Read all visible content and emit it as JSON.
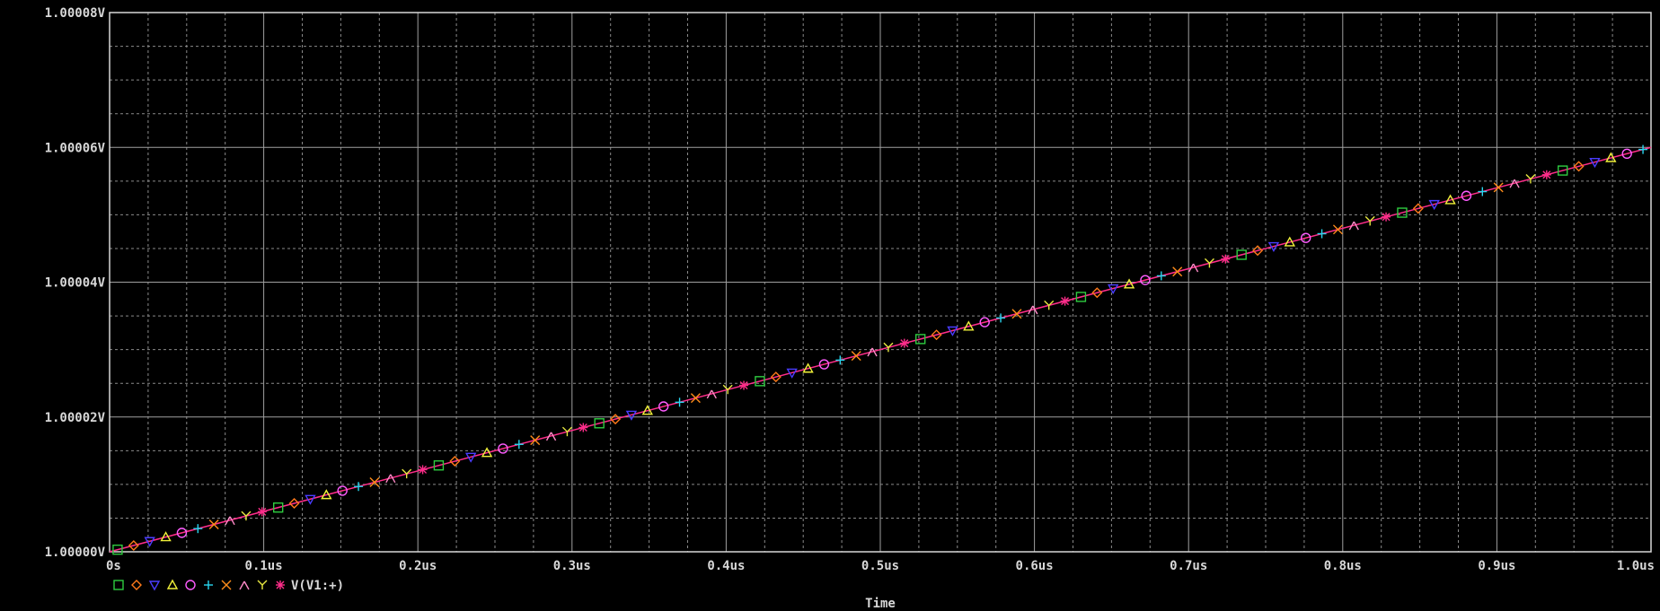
{
  "colors": {
    "background": "#000000",
    "frame": "#d8d8d8",
    "grid_major": "#a0a0a0",
    "grid_minor": "#8a8a8a",
    "text": "#d8d8d8",
    "trace": "#ff2d8a"
  },
  "legend": {
    "label": "V(V1:+)",
    "markers": [
      {
        "shape": "square",
        "color": "#2ecc40"
      },
      {
        "shape": "diamond",
        "color": "#ff7a1a"
      },
      {
        "shape": "triangle-down",
        "color": "#4a3cff"
      },
      {
        "shape": "triangle-up",
        "color": "#f2f23a"
      },
      {
        "shape": "circle",
        "color": "#ff5cff"
      },
      {
        "shape": "plus",
        "color": "#29d6f0"
      },
      {
        "shape": "x",
        "color": "#ff8c1a"
      },
      {
        "shape": "lambda",
        "color": "#ff8ac8"
      },
      {
        "shape": "y",
        "color": "#e8e840"
      },
      {
        "shape": "asterisk",
        "color": "#ff2d8a"
      }
    ]
  },
  "chart_data": {
    "type": "line",
    "xlabel": "Time",
    "ylabel": "",
    "x_unit": "us",
    "xlim": [
      0,
      1.0
    ],
    "ylim": [
      1.0,
      1.00008
    ],
    "x_ticks": [
      0,
      0.1,
      0.2,
      0.3,
      0.4,
      0.5,
      0.6,
      0.7,
      0.8,
      0.9,
      1.0
    ],
    "x_tick_labels": [
      "0s",
      "0.1us",
      "0.2us",
      "0.3us",
      "0.4us",
      "0.5us",
      "0.6us",
      "0.7us",
      "0.8us",
      "0.9us",
      "1.0us"
    ],
    "y_ticks": [
      1.0,
      1.00002,
      1.00004,
      1.00006,
      1.00008
    ],
    "y_tick_labels": [
      "1.00000V",
      "1.00002V",
      "1.00004V",
      "1.00006V",
      "1.00008V"
    ],
    "x_minor_per_major": 4,
    "y_minor_per_major": 4,
    "grid": true,
    "legend_position": "bottom-left",
    "series": [
      {
        "name": "V(V1:+)",
        "x": [
          0,
          1.0
        ],
        "y": [
          1.0,
          1.00006
        ]
      }
    ]
  }
}
